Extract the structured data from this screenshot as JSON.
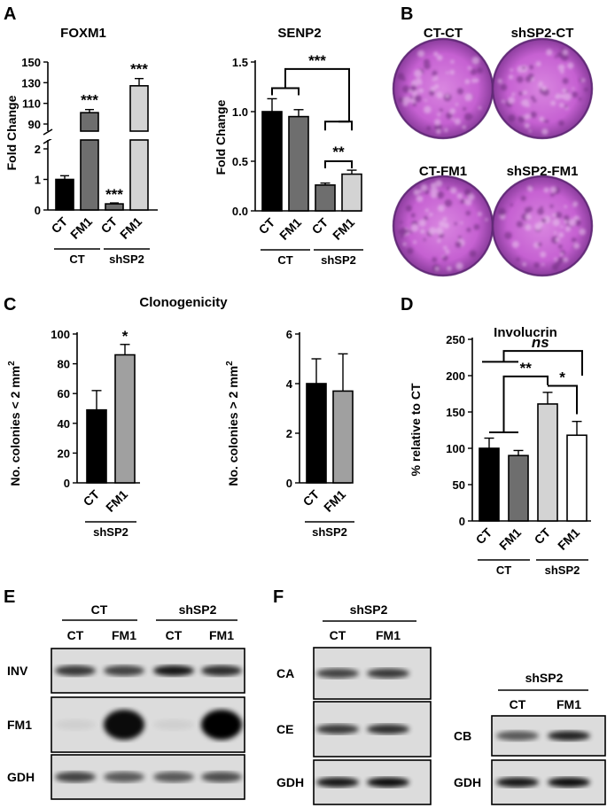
{
  "panels": {
    "A": "A",
    "B": "B",
    "C": "C",
    "D": "D",
    "E": "E",
    "F": "F"
  },
  "chart_data": [
    {
      "id": "foxm1",
      "type": "bar",
      "title": "FOXM1",
      "ylabel": "Fold Change",
      "categories": [
        "CT",
        "FM1",
        "CT",
        "FM1"
      ],
      "groups": [
        {
          "label": "CT",
          "span": [
            0,
            1
          ]
        },
        {
          "label": "shSP2",
          "span": [
            2,
            3
          ]
        }
      ],
      "values": [
        1.0,
        101,
        0.2,
        127
      ],
      "errors": [
        0.12,
        3,
        0.03,
        7
      ],
      "colors": [
        "#000000",
        "#6e6e6e",
        "#6e6e6e",
        "#d3d3d3"
      ],
      "broken_axis": true,
      "lower_ticks": [
        "0",
        "1",
        "2"
      ],
      "upper_ticks": [
        "90",
        "110",
        "130",
        "150"
      ],
      "significance": [
        "",
        "***",
        "***",
        "***"
      ]
    },
    {
      "id": "senp2",
      "type": "bar",
      "title": "SENP2",
      "ylabel": "Fold Change",
      "categories": [
        "CT",
        "FM1",
        "CT",
        "FM1"
      ],
      "groups": [
        {
          "label": "CT",
          "span": [
            0,
            1
          ]
        },
        {
          "label": "shSP2",
          "span": [
            2,
            3
          ]
        }
      ],
      "values": [
        1.0,
        0.95,
        0.26,
        0.37
      ],
      "errors": [
        0.13,
        0.07,
        0.02,
        0.04
      ],
      "colors": [
        "#000000",
        "#6e6e6e",
        "#6e6e6e",
        "#d3d3d3"
      ],
      "ylim": [
        0,
        1.5
      ],
      "yticks": [
        "0.0",
        "0.5",
        "1.0",
        "1.5"
      ],
      "brackets": [
        "***",
        "**"
      ]
    },
    {
      "id": "colonies_small",
      "type": "bar",
      "title": "Clonogenicity",
      "ylabel": "No. colonies < 2 mm",
      "ylabel_sup": "2",
      "categories": [
        "CT",
        "FM1"
      ],
      "groups": [
        {
          "label": "shSP2",
          "span": [
            0,
            1
          ]
        }
      ],
      "values": [
        49,
        86
      ],
      "errors": [
        13,
        7
      ],
      "colors": [
        "#000000",
        "#a0a0a0"
      ],
      "ylim": [
        0,
        100
      ],
      "yticks": [
        "0",
        "20",
        "40",
        "60",
        "80",
        "100"
      ],
      "significance": [
        "",
        "*"
      ]
    },
    {
      "id": "colonies_large",
      "type": "bar",
      "ylabel": "No. colonies > 2 mm",
      "ylabel_sup": "2",
      "categories": [
        "CT",
        "FM1"
      ],
      "groups": [
        {
          "label": "shSP2",
          "span": [
            0,
            1
          ]
        }
      ],
      "values": [
        4.0,
        3.7
      ],
      "errors": [
        1.0,
        1.5
      ],
      "colors": [
        "#000000",
        "#a0a0a0"
      ],
      "ylim": [
        0,
        6
      ],
      "yticks": [
        "0",
        "2",
        "4",
        "6"
      ]
    },
    {
      "id": "involucrin",
      "type": "bar",
      "title": "Involucrin",
      "ylabel": "% relative to CT",
      "categories": [
        "CT",
        "FM1",
        "CT",
        "FM1"
      ],
      "groups": [
        {
          "label": "CT",
          "span": [
            0,
            1
          ]
        },
        {
          "label": "shSP2",
          "span": [
            2,
            3
          ]
        }
      ],
      "values": [
        100,
        90,
        161,
        118
      ],
      "errors": [
        14,
        7,
        16,
        19
      ],
      "colors": [
        "#000000",
        "#6e6e6e",
        "#d3d3d3",
        "#ffffff"
      ],
      "ylim": [
        0,
        250
      ],
      "yticks": [
        "0",
        "50",
        "100",
        "150",
        "200",
        "250"
      ],
      "brackets": [
        "ns",
        "**",
        "*"
      ]
    }
  ],
  "plates": {
    "labels": [
      "CT-CT",
      "shSP2-CT",
      "CT-FM1",
      "shSP2-FM1"
    ]
  },
  "blot_e": {
    "groups": [
      "CT",
      "shSP2"
    ],
    "lanes": [
      "CT",
      "FM1",
      "CT",
      "FM1"
    ],
    "rows": [
      "INV",
      "FM1",
      "GDH"
    ]
  },
  "blot_f1": {
    "group": "shSP2",
    "lanes": [
      "CT",
      "FM1"
    ],
    "rows": [
      "CA",
      "CE",
      "GDH"
    ]
  },
  "blot_f2": {
    "group": "shSP2",
    "lanes": [
      "CT",
      "FM1"
    ],
    "rows": [
      "CB",
      "GDH"
    ]
  }
}
